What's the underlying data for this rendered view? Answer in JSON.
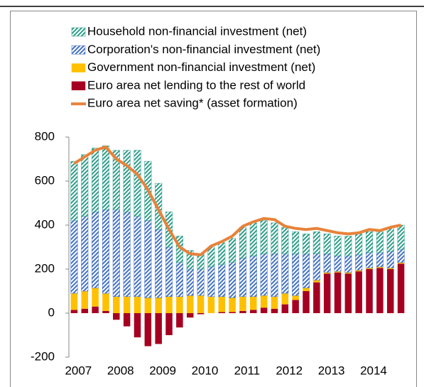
{
  "chart_data": {
    "type": "bar",
    "stacked": true,
    "categories": [
      "2007",
      null,
      null,
      null,
      "2008",
      null,
      null,
      null,
      "2009",
      null,
      null,
      null,
      "2010",
      null,
      null,
      null,
      "2011",
      null,
      null,
      null,
      "2012",
      null,
      null,
      null,
      "2013",
      null,
      null,
      null,
      "2014",
      null,
      null,
      null
    ],
    "series": [
      {
        "name": "Household non-financial investment (net)",
        "color": "#2e9e8a",
        "pattern": "hatch",
        "values": [
          270,
          280,
          290,
          290,
          270,
          280,
          300,
          270,
          210,
          160,
          120,
          85,
          70,
          90,
          100,
          110,
          140,
          150,
          150,
          140,
          120,
          100,
          90,
          100,
          90,
          90,
          90,
          95,
          95,
          95,
          110,
          110
        ]
      },
      {
        "name": "Corporation's non-financial investment (net)",
        "color": "#4472c4",
        "pattern": "hatch",
        "values": [
          330,
          340,
          345,
          380,
          395,
          385,
          365,
          350,
          310,
          225,
          155,
          120,
          120,
          135,
          145,
          160,
          175,
          185,
          190,
          195,
          180,
          190,
          155,
          120,
          85,
          70,
          75,
          70,
          70,
          65,
          75,
          60
        ]
      },
      {
        "name": "Government non-financial investment (net)",
        "color": "#ffc000",
        "values": [
          75,
          80,
          85,
          80,
          75,
          75,
          75,
          70,
          70,
          75,
          75,
          80,
          80,
          75,
          70,
          65,
          65,
          60,
          55,
          55,
          50,
          20,
          15,
          10,
          5,
          5,
          5,
          5,
          5,
          5,
          5,
          5
        ]
      },
      {
        "name": "Euro area net lending to the rest of world",
        "color": "#a50021",
        "values": [
          15,
          20,
          30,
          10,
          -30,
          -60,
          -110,
          -150,
          -140,
          -100,
          -65,
          -20,
          -5,
          0,
          5,
          5,
          10,
          15,
          25,
          20,
          40,
          60,
          100,
          140,
          180,
          185,
          180,
          190,
          200,
          205,
          200,
          225
        ]
      },
      {
        "name": "Euro area net saving* (asset formation)",
        "color": "#e8823a",
        "type": "line",
        "values": [
          680,
          710,
          740,
          755,
          700,
          670,
          630,
          560,
          470,
          380,
          300,
          270,
          265,
          305,
          325,
          350,
          395,
          415,
          430,
          425,
          395,
          385,
          380,
          385,
          375,
          365,
          360,
          365,
          380,
          375,
          390,
          400
        ]
      }
    ],
    "ylim": [
      -200,
      800
    ],
    "yticks": [
      -200,
      0,
      200,
      400,
      600,
      800
    ],
    "grid": false
  }
}
